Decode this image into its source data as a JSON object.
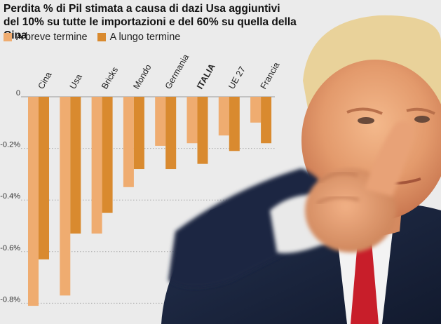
{
  "title_lines": [
    "Perdita % di Pil stimata a causa di dazi Usa aggiuntivi",
    "del 10% su tutte le importazioni e del 60% su quella della Cina"
  ],
  "legend": [
    {
      "label": "A breve termine",
      "color": "#efac70"
    },
    {
      "label": "A lungo termine",
      "color": "#d98a2f"
    }
  ],
  "photo_icon": "pointing-man-photo",
  "chart_data": {
    "type": "bar",
    "title": "Perdita % di Pil stimata a causa di dazi Usa aggiuntivi del 10% su tutte le importazioni e del 60% su quella della Cina",
    "xlabel": "",
    "ylabel": "",
    "categories": [
      "Cina",
      "Usa",
      "Bricks",
      "Mondo",
      "Germania",
      "ITALIA",
      "UE 27",
      "Francia"
    ],
    "highlight_category": "ITALIA",
    "series": [
      {
        "name": "A breve termine",
        "color": "#efac70",
        "values": [
          -0.81,
          -0.77,
          -0.53,
          -0.35,
          -0.19,
          -0.18,
          -0.15,
          -0.1
        ]
      },
      {
        "name": "A lungo termine",
        "color": "#d98a2f",
        "values": [
          -0.63,
          -0.53,
          -0.45,
          -0.28,
          -0.28,
          -0.26,
          -0.21,
          -0.18
        ]
      }
    ],
    "y_ticks": [
      0,
      -0.2,
      -0.4,
      -0.6,
      -0.8
    ],
    "y_tick_labels": [
      "0",
      "-0.2%",
      "-0.4%",
      "-0.6%",
      "-0.8%"
    ],
    "ylim": [
      -0.8,
      0
    ],
    "grid": "dotted horizontal",
    "legend_position": "top-left"
  }
}
